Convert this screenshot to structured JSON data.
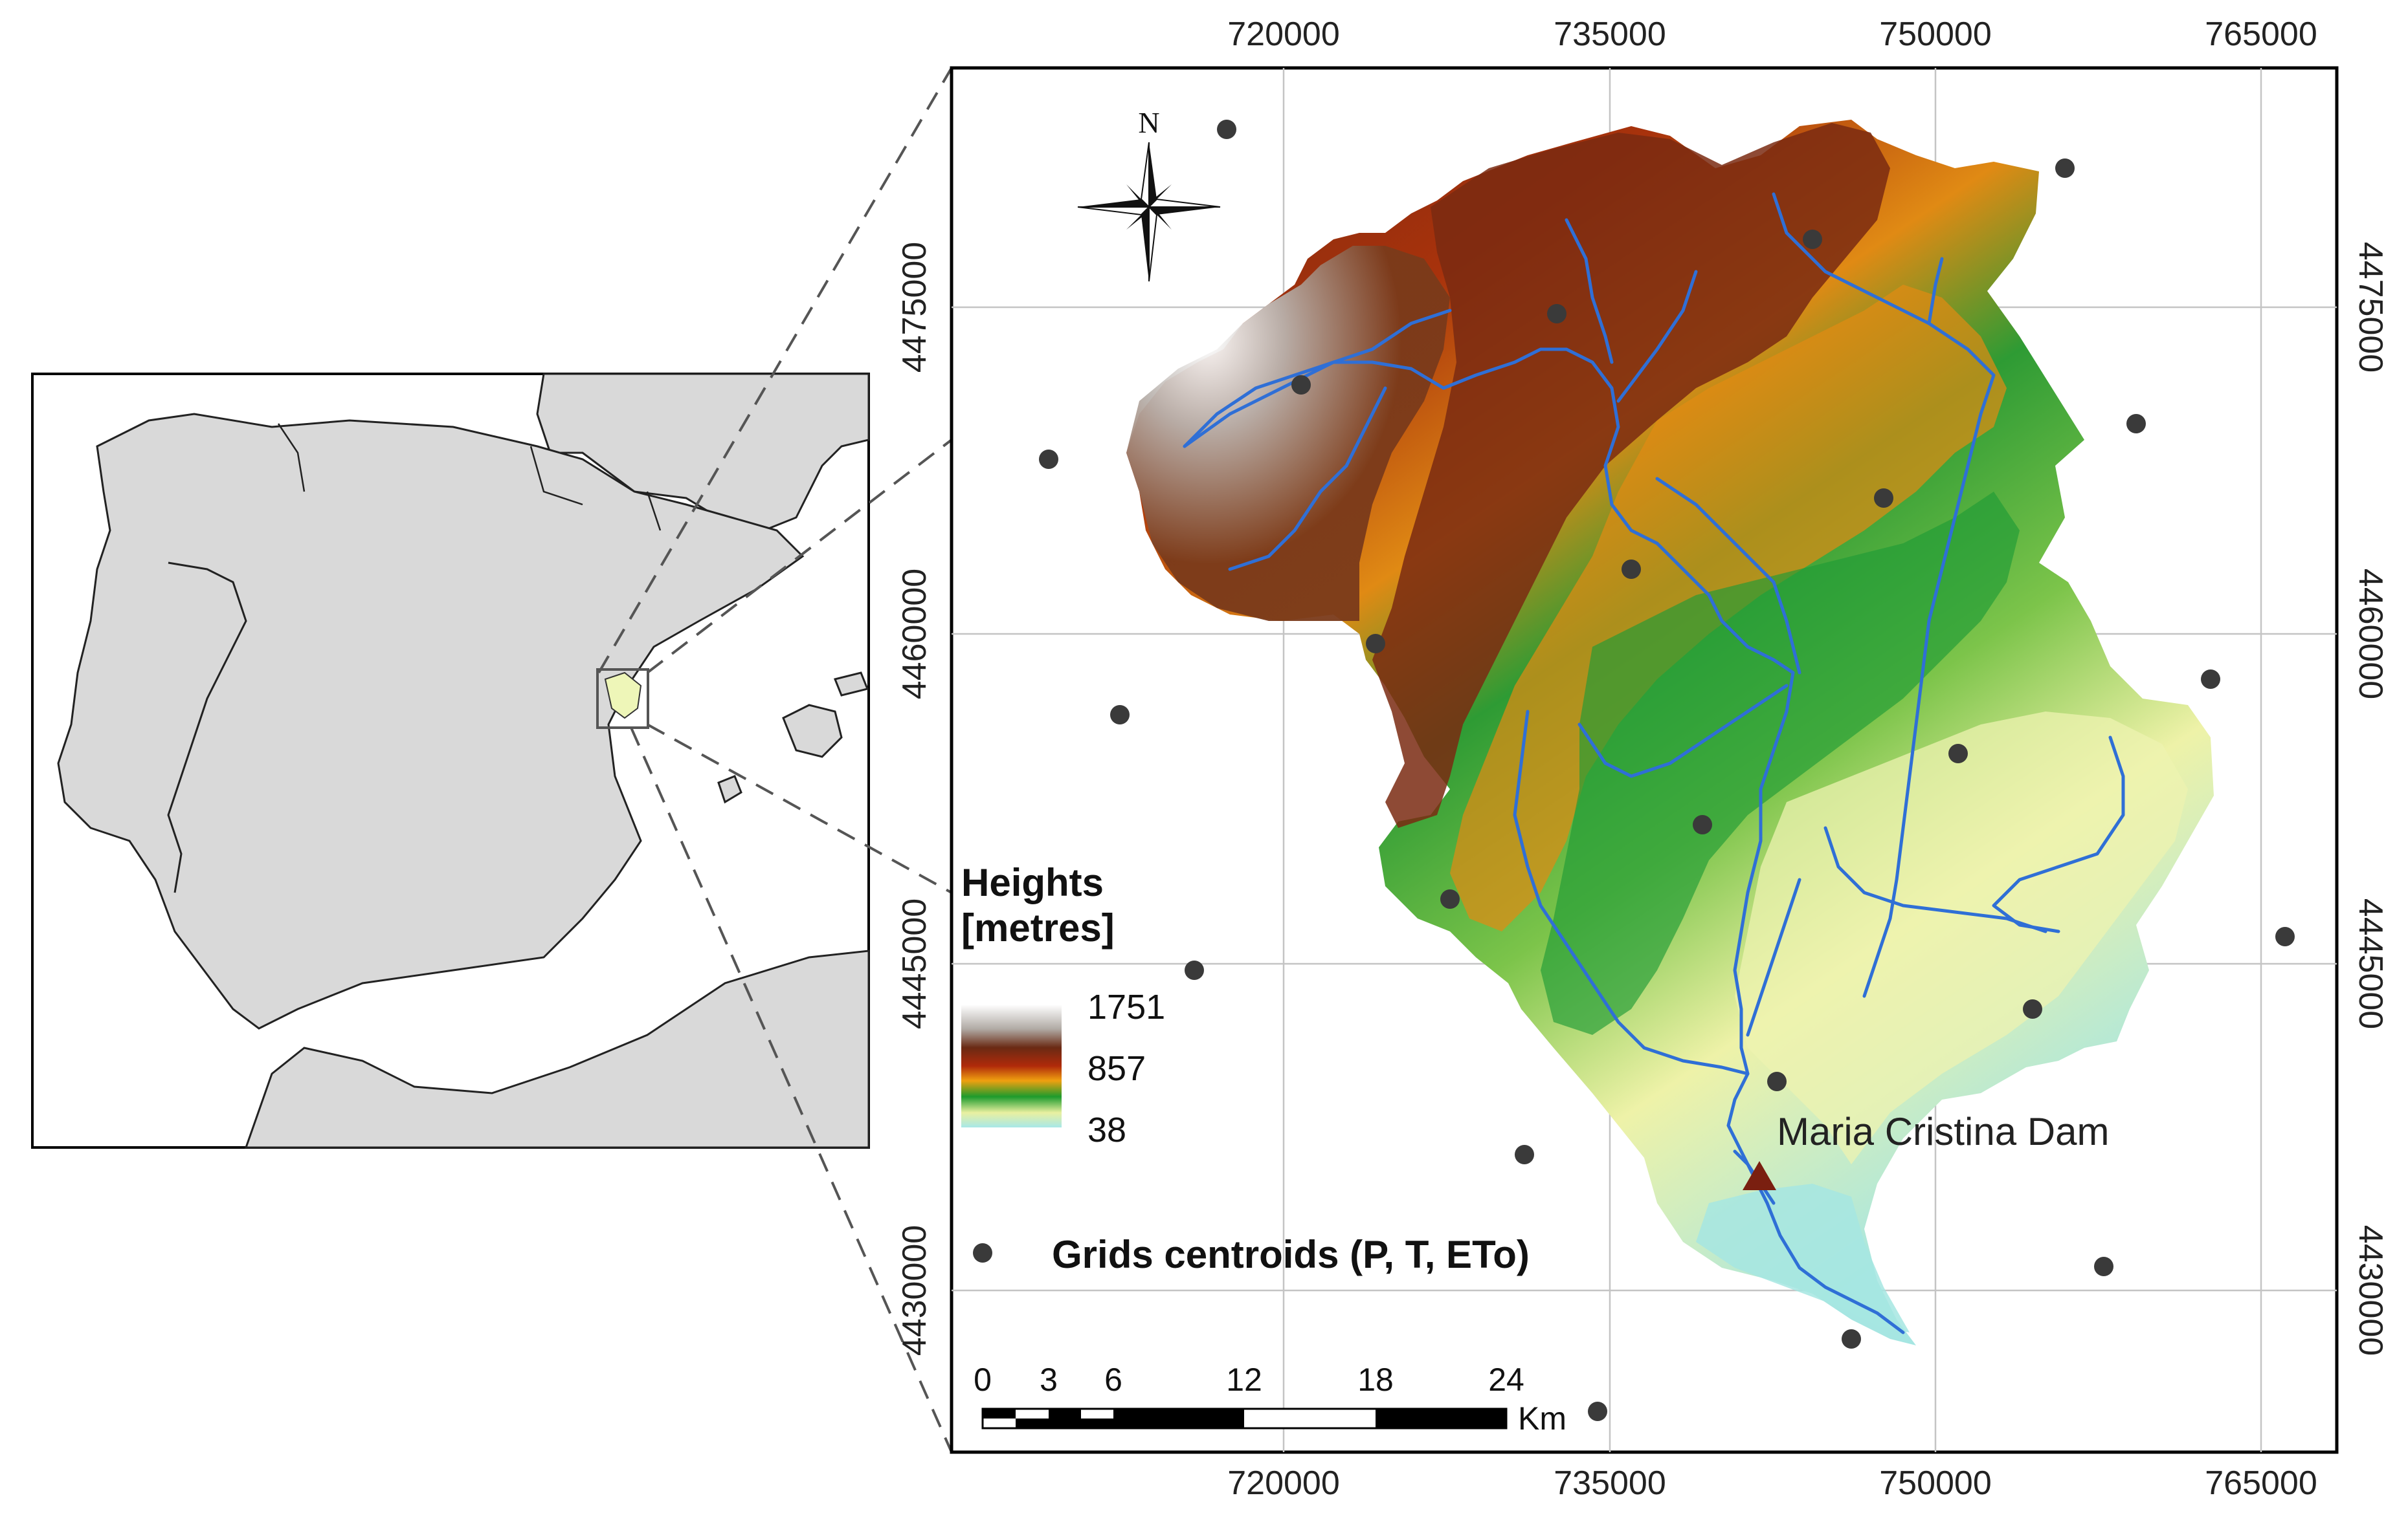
{
  "x_ticks": [
    "720000",
    "735000",
    "750000",
    "765000"
  ],
  "y_ticks": [
    "4475000",
    "4460000",
    "4445000",
    "4430000"
  ],
  "north_label": "N",
  "legend": {
    "title_line1": "Heights",
    "title_line2": "[metres]",
    "max": "1751",
    "mid": "857",
    "min": "38"
  },
  "dam_label": "Maria Cristina Dam",
  "centroids_label": "Grids centroids (P, T, ETo)",
  "scale_bar": {
    "ticks": [
      "0",
      "3",
      "6",
      "12",
      "18",
      "24"
    ],
    "unit": "Km"
  },
  "colors": {
    "land": "#d9d9d9",
    "sea": "#ffffff",
    "river": "#2f6fd6",
    "centroid": "#3a3a3a",
    "dam": "#7a1f10",
    "grid": "#bfbfbf",
    "frame": "#000000"
  }
}
